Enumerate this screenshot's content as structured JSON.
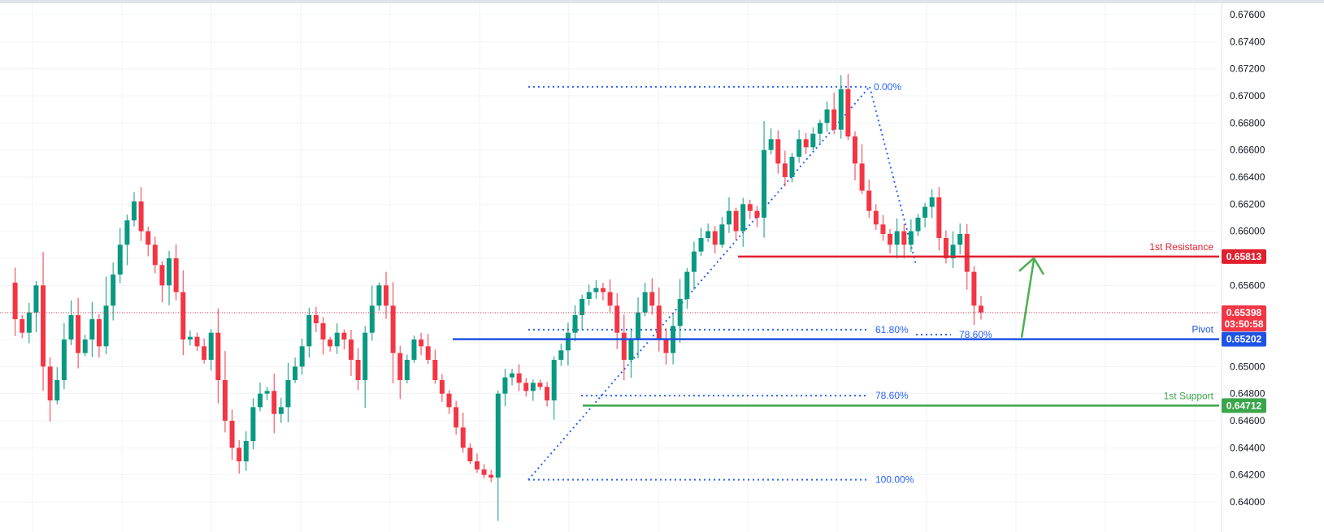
{
  "chart_data": {
    "type": "candlestick",
    "ylim": [
      0.64,
      0.677
    ],
    "price_axis": {
      "ticks": [
        "0.67600",
        "0.67400",
        "0.67200",
        "0.67000",
        "0.66800",
        "0.66600",
        "0.66400",
        "0.66200",
        "0.66000",
        "0.65800",
        "0.65600",
        "0.65400",
        "0.65200",
        "0.65000",
        "0.64800",
        "0.64600",
        "0.64400",
        "0.64200",
        "0.64000"
      ],
      "position": "right"
    },
    "grid": true,
    "colors": {
      "up": "#089981",
      "down": "#f23645",
      "resistance": "#e0202e",
      "pivot": "#1e53e5",
      "support": "#3aa64a",
      "fib": "#2962ff",
      "current": "#f23645",
      "arrow": "#4caf50",
      "grid": "#f0f3fa",
      "axis_text": "#131722"
    },
    "levels": [
      {
        "id": "resistance",
        "label": "1st Resistance",
        "value": 0.65813,
        "badge": "0.65813",
        "color": "#e0202e"
      },
      {
        "id": "pivot",
        "label": "Pivot",
        "value": 0.65202,
        "badge": "0.65202",
        "color": "#1e53e5"
      },
      {
        "id": "support",
        "label": "1st Support",
        "value": 0.64712,
        "badge": "0.64712",
        "color": "#3aa64a"
      }
    ],
    "current_price": {
      "value": 0.65398,
      "badge": "0.65398",
      "countdown": "03:50:58"
    },
    "fib_labels": {
      "top": "0.00%",
      "bottom": "100.00%",
      "mid_a": "61.80%",
      "mid_b": "78.60%",
      "right_b": "78.60%"
    },
    "fib_levels": {
      "top": 0.67067,
      "bottom": 0.64164,
      "p618": 0.65273,
      "p786": 0.64785
    },
    "ohlc_path": [
      0.6562,
      0.6535,
      0.6525,
      0.654,
      0.656,
      0.65,
      0.6475,
      0.649,
      0.652,
      0.6538,
      0.651,
      0.652,
      0.6535,
      0.6515,
      0.6545,
      0.6568,
      0.659,
      0.6608,
      0.6622,
      0.66,
      0.659,
      0.6575,
      0.656,
      0.658,
      0.6555,
      0.652,
      0.6522,
      0.6515,
      0.6505,
      0.6525,
      0.649,
      0.646,
      0.644,
      0.643,
      0.6445,
      0.647,
      0.648,
      0.6482,
      0.6465,
      0.647,
      0.649,
      0.65,
      0.6515,
      0.6538,
      0.6532,
      0.652,
      0.6515,
      0.6525,
      0.652,
      0.6505,
      0.649,
      0.6525,
      0.6545,
      0.656,
      0.6545,
      0.651,
      0.649,
      0.6505,
      0.652,
      0.6515,
      0.6505,
      0.649,
      0.648,
      0.647,
      0.6455,
      0.644,
      0.643,
      0.6424,
      0.642,
      0.6418,
      0.648,
      0.6492,
      0.6495,
      0.6488,
      0.6482,
      0.6488,
      0.6485,
      0.6475,
      0.6505,
      0.6512,
      0.6525,
      0.6538,
      0.655,
      0.6555,
      0.6558,
      0.6555,
      0.6545,
      0.6525,
      0.6505,
      0.652,
      0.654,
      0.6555,
      0.6545,
      0.652,
      0.651,
      0.653,
      0.655,
      0.657,
      0.6585,
      0.6595,
      0.66,
      0.659,
      0.6605,
      0.6615,
      0.66,
      0.662,
      0.6615,
      0.661,
      0.666,
      0.6668,
      0.665,
      0.664,
      0.6655,
      0.6668,
      0.6662,
      0.6672,
      0.668,
      0.669,
      0.6675,
      0.6705,
      0.667,
      0.665,
      0.663,
      0.6615,
      0.6605,
      0.6598,
      0.659,
      0.66,
      0.659,
      0.66,
      0.661,
      0.6618,
      0.6625,
      0.6595,
      0.658,
      0.659,
      0.6598,
      0.657,
      0.6545,
      0.654
    ]
  }
}
